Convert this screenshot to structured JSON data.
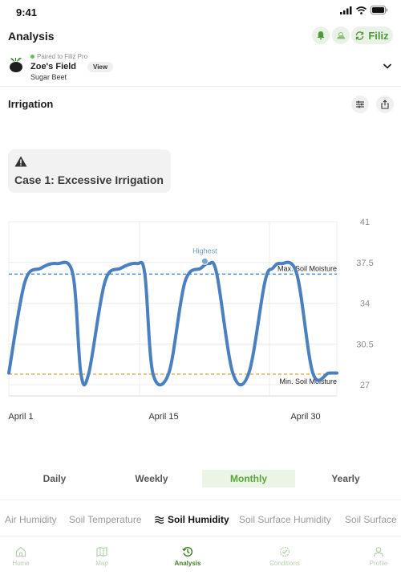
{
  "status_bar": {
    "time": "9:41"
  },
  "header": {
    "title": "Analysis",
    "device_label": "Filiz"
  },
  "field": {
    "paired_text": "Paired to Filiz Pro",
    "name": "Zoe's Field",
    "crop": "Sugar Beet",
    "view_label": "View"
  },
  "section": {
    "title": "Irrigation"
  },
  "case_card": {
    "title": "Case 1: Excessive Irrigation",
    "icon": "warning-icon"
  },
  "chart_data": {
    "type": "line",
    "title": "",
    "xlabel": "",
    "ylabel": "",
    "x_tick_labels": [
      "April 1",
      "April 15",
      "April 30"
    ],
    "y_ticks": [
      41,
      37.5,
      34,
      30.5,
      27
    ],
    "ylim": [
      27,
      41
    ],
    "y_axis_side": "right",
    "grid": true,
    "series": [
      {
        "color": "#4a7fc0",
        "x": [
          0,
          2,
          4,
          6,
          8,
          9,
          10,
          12,
          14,
          16,
          17,
          18,
          20,
          22,
          24,
          25,
          26,
          28,
          30,
          32,
          33,
          34,
          36,
          38,
          40,
          41
        ],
        "y": [
          28,
          35.8,
          37.0,
          37.4,
          36.5,
          28,
          28,
          35.8,
          37.0,
          37.4,
          36.5,
          28,
          28,
          35.8,
          37.0,
          37.4,
          36.5,
          28,
          28,
          35.8,
          37.0,
          37.4,
          36.5,
          28,
          28,
          28
        ]
      }
    ],
    "reference_lines": [
      {
        "label": "Max. Soil Moisture",
        "value": 36.5,
        "color": "#3d7cc9"
      },
      {
        "label": "Min. Soil Moisture",
        "value": 27.9,
        "color": "#e5a43a"
      }
    ],
    "annotation": {
      "label": "Highest",
      "value": 37.6
    }
  },
  "period_tabs": [
    {
      "label": "Daily",
      "active": false
    },
    {
      "label": "Weekly",
      "active": false
    },
    {
      "label": "Monthly",
      "active": true
    },
    {
      "label": "Yearly",
      "active": false
    }
  ],
  "metric_tabs": [
    {
      "label": "Air Humidity",
      "active": false
    },
    {
      "label": "Soil Temperature",
      "active": false
    },
    {
      "label": "Soil Humidity",
      "active": true,
      "icon": "waves-icon"
    },
    {
      "label": "Soil Surface Humidity",
      "active": false
    },
    {
      "label": "Soil Surface",
      "active": false
    }
  ],
  "bottom_nav": [
    {
      "label": "Home",
      "icon": "home-icon",
      "active": false
    },
    {
      "label": "Map",
      "icon": "map-icon",
      "active": false
    },
    {
      "label": "Analysis",
      "icon": "history-icon",
      "active": true
    },
    {
      "label": "Conditions",
      "icon": "check-circle-icon",
      "active": false
    },
    {
      "label": "Profile",
      "icon": "user-icon",
      "active": false
    }
  ],
  "colors": {
    "accent": "#4d9a36",
    "accent_light": "#e9f2e6",
    "line": "#4a7fc0",
    "max_line": "#3d7cc9",
    "min_line": "#e5a43a"
  }
}
